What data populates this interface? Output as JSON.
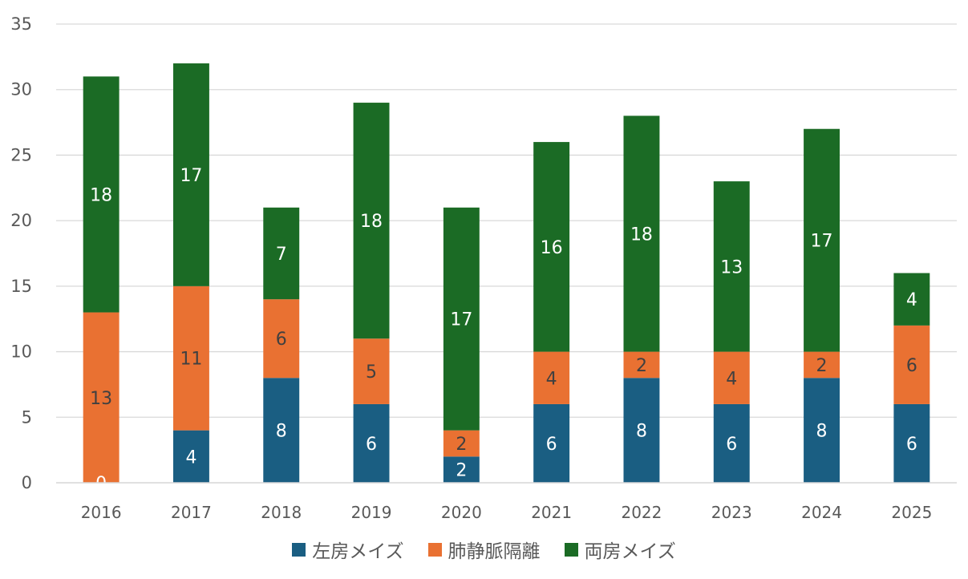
{
  "chart_data": {
    "type": "bar",
    "stacked": true,
    "title": "",
    "xlabel": "",
    "ylabel": "",
    "ylim": [
      0,
      35
    ],
    "yticks": [
      0,
      5,
      10,
      15,
      20,
      25,
      30,
      35
    ],
    "grid": true,
    "legend_position": "bottom",
    "categories": [
      "2016",
      "2017",
      "2018",
      "2019",
      "2020",
      "2021",
      "2022",
      "2023",
      "2024",
      "2025"
    ],
    "series": [
      {
        "name": "左房メイズ",
        "color": "#1a5e82",
        "label_color": "#ffffff",
        "values": [
          0,
          4,
          8,
          6,
          2,
          6,
          8,
          6,
          8,
          6
        ]
      },
      {
        "name": "肺静脈隔離",
        "color": "#e97132",
        "label_color": "#404040",
        "values": [
          13,
          11,
          6,
          5,
          2,
          4,
          2,
          4,
          2,
          6
        ]
      },
      {
        "name": "両房メイズ",
        "color": "#1b6b25",
        "label_color": "#ffffff",
        "values": [
          18,
          17,
          7,
          18,
          17,
          16,
          18,
          13,
          17,
          4
        ]
      }
    ]
  }
}
